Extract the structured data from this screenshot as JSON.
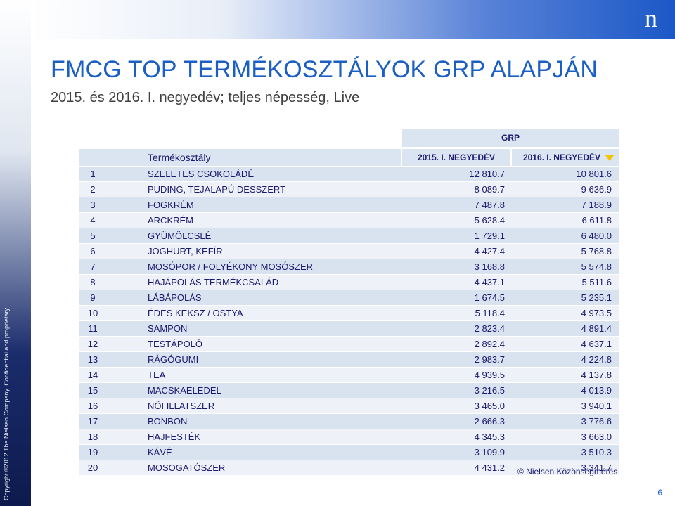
{
  "logo_letter": "n",
  "copyright": "Copyright ©2012 The Nielsen Company. Confidential and proprietary.",
  "title": "FMCG TOP TERMÉKOSZTÁLYOK GRP ALAPJÁN",
  "subtitle": "2015. és 2016. I. negyedév; teljes népesség, Live",
  "table": {
    "group_header": "GRP",
    "col_category": "Termékosztály",
    "col_2015": "2015. I. NEGYEDÉV",
    "col_2016": "2016. I. NEGYEDÉV",
    "sort_indicator_color": "#f5c400",
    "rows": [
      {
        "rank": "1",
        "name": "SZELETES CSOKOLÁDÉ",
        "v2015": "12 810.7",
        "v2016": "10 801.6"
      },
      {
        "rank": "2",
        "name": "PUDING, TEJALAPÚ DESSZERT",
        "v2015": "8 089.7",
        "v2016": "9 636.9"
      },
      {
        "rank": "3",
        "name": "FOGKRÉM",
        "v2015": "7 487.8",
        "v2016": "7 188.9"
      },
      {
        "rank": "4",
        "name": "ARCKRÉM",
        "v2015": "5 628.4",
        "v2016": "6 611.8"
      },
      {
        "rank": "5",
        "name": "GYÜMÖLCSLÉ",
        "v2015": "1 729.1",
        "v2016": "6 480.0"
      },
      {
        "rank": "6",
        "name": "JOGHURT, KEFÍR",
        "v2015": "4 427.4",
        "v2016": "5 768.8"
      },
      {
        "rank": "7",
        "name": "MOSÓPOR / FOLYÉKONY MOSÓSZER",
        "v2015": "3 168.8",
        "v2016": "5 574.8"
      },
      {
        "rank": "8",
        "name": "HAJÁPOLÁS TERMÉKCSALÁD",
        "v2015": "4 437.1",
        "v2016": "5 511.6"
      },
      {
        "rank": "9",
        "name": "LÁBÁPOLÁS",
        "v2015": "1 674.5",
        "v2016": "5 235.1"
      },
      {
        "rank": "10",
        "name": "ÉDES KEKSZ / OSTYA",
        "v2015": "5 118.4",
        "v2016": "4 973.5"
      },
      {
        "rank": "11",
        "name": "SAMPON",
        "v2015": "2 823.4",
        "v2016": "4 891.4"
      },
      {
        "rank": "12",
        "name": "TESTÁPOLÓ",
        "v2015": "2 892.4",
        "v2016": "4 637.1"
      },
      {
        "rank": "13",
        "name": "RÁGÓGUMI",
        "v2015": "2 983.7",
        "v2016": "4 224.8"
      },
      {
        "rank": "14",
        "name": "TEA",
        "v2015": "4 939.5",
        "v2016": "4 137.8"
      },
      {
        "rank": "15",
        "name": "MACSKAELEDEL",
        "v2015": "3 216.5",
        "v2016": "4 013.9"
      },
      {
        "rank": "16",
        "name": "NŐI ILLATSZER",
        "v2015": "3 465.0",
        "v2016": "3 940.1"
      },
      {
        "rank": "17",
        "name": "BONBON",
        "v2015": "2 666.3",
        "v2016": "3 776.6"
      },
      {
        "rank": "18",
        "name": "HAJFESTÉK",
        "v2015": "4 345.3",
        "v2016": "3 663.0"
      },
      {
        "rank": "19",
        "name": "KÁVÉ",
        "v2015": "3 109.9",
        "v2016": "3 510.3"
      },
      {
        "rank": "20",
        "name": "MOSOGATÓSZER",
        "v2015": "4 431.2",
        "v2016": "3 341.7"
      }
    ]
  },
  "source": "© Nielsen Közönségmérés",
  "page_number": "6",
  "colors": {
    "title": "#1c5fc4",
    "header_bg": "#dbe5f1",
    "row_odd": "#d9e3f0",
    "row_even": "#eef2f8",
    "text": "#1a1a6e"
  }
}
